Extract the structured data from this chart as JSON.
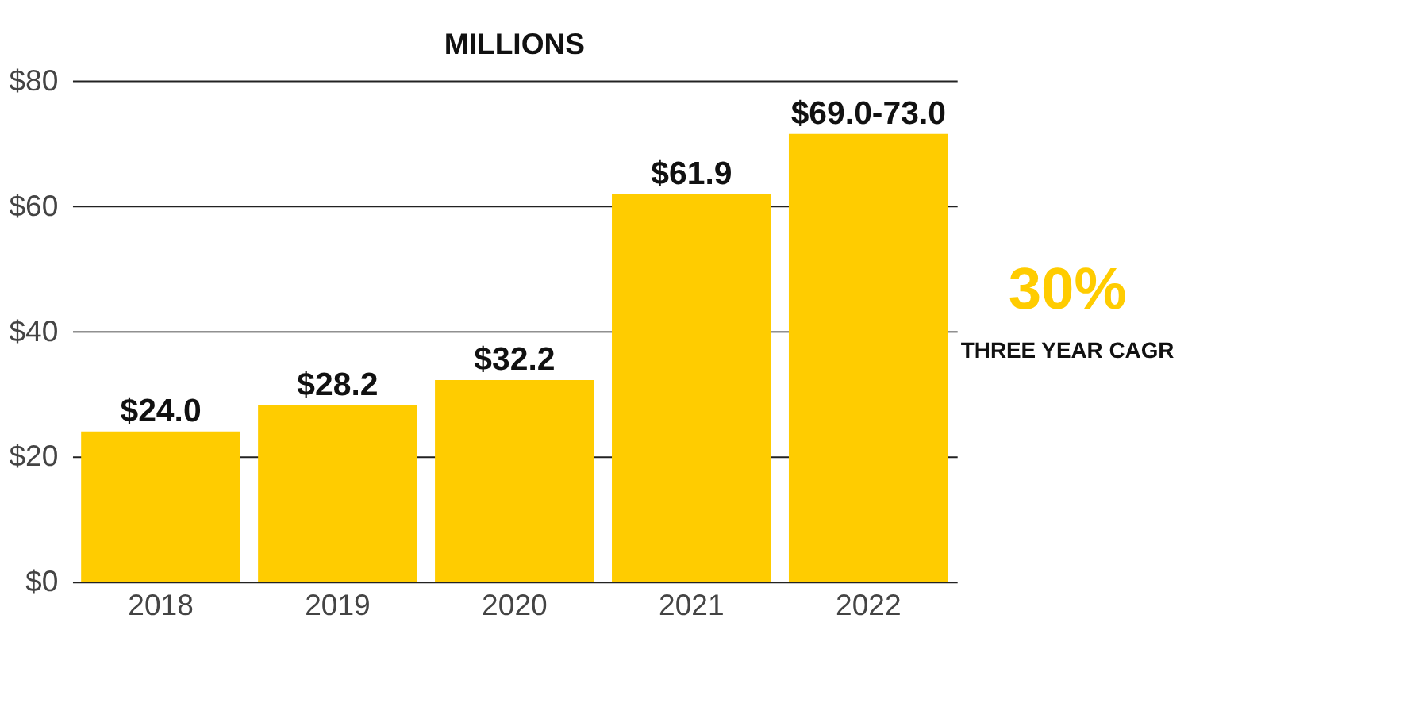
{
  "chart_data": {
    "type": "bar",
    "title": "MILLIONS",
    "categories": [
      "2018",
      "2019",
      "2020",
      "2021",
      "2022"
    ],
    "series": [
      {
        "color": "#ffcc00",
        "values": [
          24.0,
          28.2,
          32.2,
          61.9,
          71.5
        ]
      }
    ],
    "value_labels": [
      "$24.0",
      "$28.2",
      "$32.2",
      "$61.9",
      "$69.0-73.0"
    ],
    "ylim": [
      0,
      80
    ],
    "yticks": [
      {
        "value": 0,
        "label": "$0"
      },
      {
        "value": 20,
        "label": "$20"
      },
      {
        "value": 40,
        "label": "$40"
      },
      {
        "value": 60,
        "label": "$60"
      },
      {
        "value": 80,
        "label": "$80"
      }
    ],
    "grid": "y",
    "annotations": [
      "30%",
      "THREE YEAR CAGR"
    ]
  }
}
